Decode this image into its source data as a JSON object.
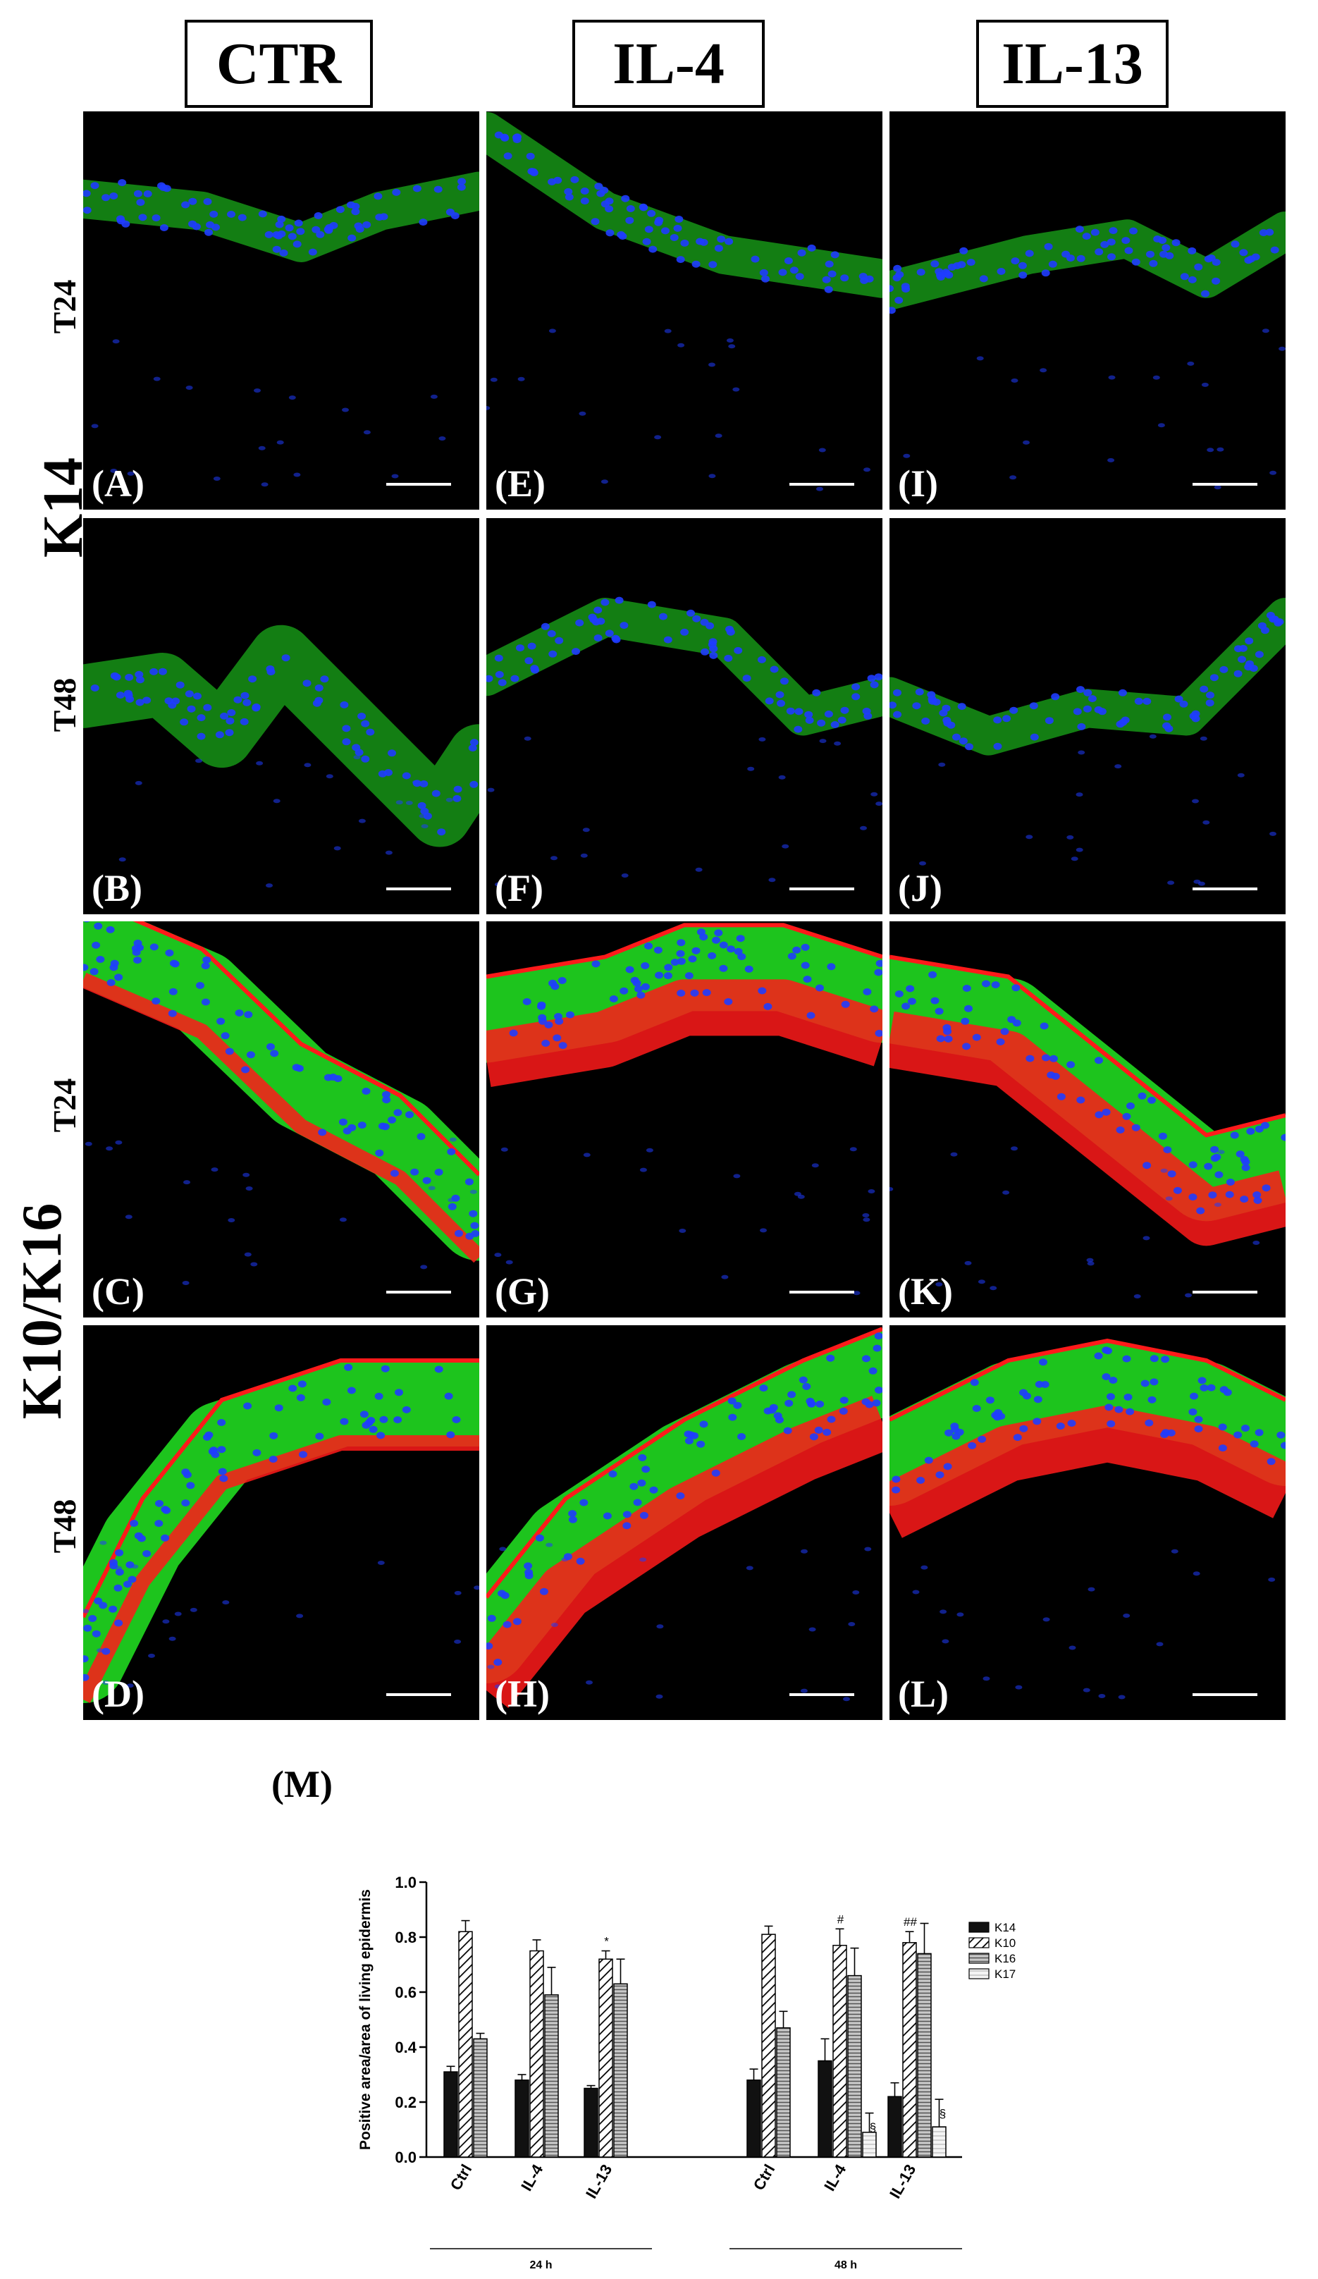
{
  "columns": [
    "CTR",
    "IL-4",
    "IL-13"
  ],
  "row_groups": [
    {
      "label": "K14",
      "rows": [
        "T24",
        "T48"
      ]
    },
    {
      "label": "K10/K16",
      "rows": [
        "T24",
        "T48"
      ]
    }
  ],
  "panels": {
    "A": "(A)",
    "B": "(B)",
    "C": "(C)",
    "D": "(D)",
    "E": "(E)",
    "F": "(F)",
    "G": "(G)",
    "H": "(H)",
    "I": "(I)",
    "J": "(J)",
    "K": "(K)",
    "L": "(L)"
  },
  "colors": {
    "nuclei": "#1f3cff",
    "k14_k10": "#22e622",
    "k16": "#ff1a1a",
    "background": "#000000"
  },
  "chart_label": "(M)",
  "chart_data": {
    "type": "bar",
    "title": "",
    "xlabel": "",
    "ylabel": "Positive area/area of living epidermis",
    "ylim": [
      0,
      1.0
    ],
    "yticks": [
      "0.0",
      "0.2",
      "0.4",
      "0.6",
      "0.8",
      "1.0"
    ],
    "groups": [
      {
        "name": "24 h",
        "categories": [
          "Ctrl",
          "IL-4",
          "IL-13"
        ]
      },
      {
        "name": "48 h",
        "categories": [
          "Ctrl",
          "IL-4",
          "IL-13"
        ]
      }
    ],
    "legend_position": "top-right",
    "series": [
      {
        "name": "K14",
        "values": [
          0.31,
          0.28,
          0.25,
          0.28,
          0.35,
          0.22
        ],
        "errors": [
          0.02,
          0.02,
          0.01,
          0.04,
          0.08,
          0.05
        ],
        "fill": "solid-black"
      },
      {
        "name": "K10",
        "values": [
          0.82,
          0.75,
          0.72,
          0.81,
          0.77,
          0.78
        ],
        "errors": [
          0.04,
          0.04,
          0.03,
          0.03,
          0.06,
          0.04
        ],
        "fill": "diagonal-hatch"
      },
      {
        "name": "K16",
        "values": [
          0.43,
          0.59,
          0.63,
          0.47,
          0.66,
          0.74
        ],
        "errors": [
          0.02,
          0.1,
          0.09,
          0.06,
          0.1,
          0.11
        ],
        "fill": "dense-hatch"
      },
      {
        "name": "K17",
        "values": [
          null,
          null,
          null,
          null,
          0.09,
          0.11
        ],
        "errors": [
          null,
          null,
          null,
          null,
          0.07,
          0.1
        ],
        "fill": "light-hatch"
      }
    ],
    "annotations": [
      {
        "group_index": 2,
        "series": "K10",
        "text": "*"
      },
      {
        "group_index": 4,
        "series": "K10",
        "text": "#"
      },
      {
        "group_index": 5,
        "series": "K10",
        "text": "##"
      },
      {
        "group_index": 4,
        "series": "K17",
        "text": "§"
      },
      {
        "group_index": 5,
        "series": "K17",
        "text": "§"
      }
    ]
  }
}
